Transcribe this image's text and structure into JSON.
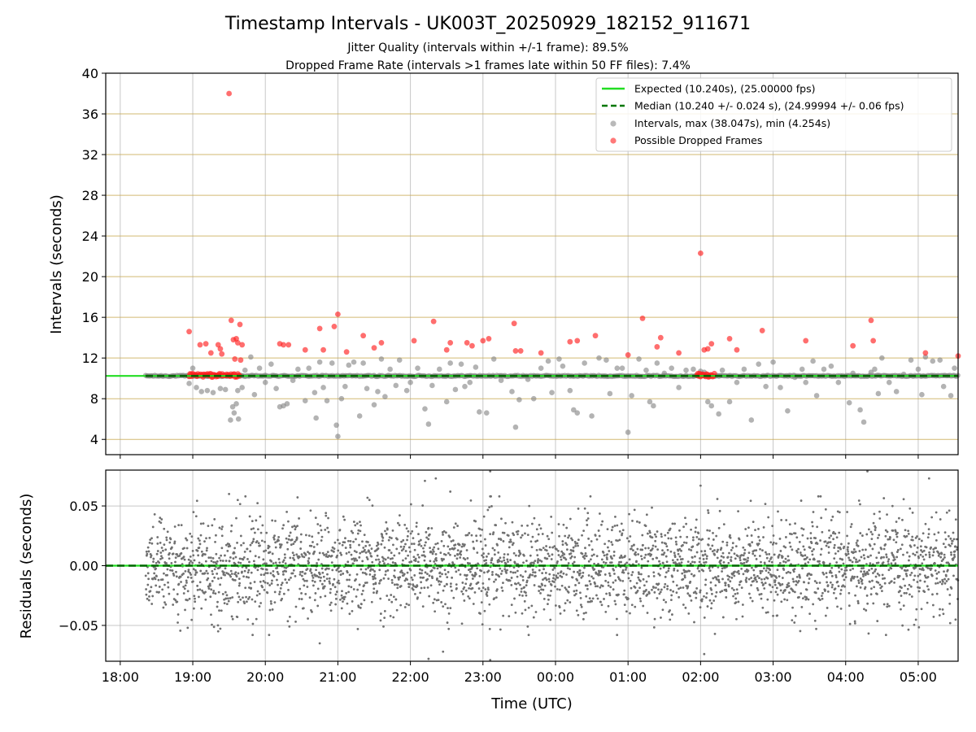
{
  "chart_data": [
    {
      "type": "scatter",
      "title": "Timestamp Intervals - UK003T_20250929_182152_911671",
      "subtitle_1": "Jitter Quality (intervals within +/-1 frame): 89.5%",
      "subtitle_2": "Dropped Frame Rate (intervals >1 frames late within 50 FF files): 7.4%",
      "xlabel": "",
      "ylabel": "Intervals (seconds)",
      "x_units": "hours since 18:00 UTC",
      "xlim": [
        -0.2,
        11.55
      ],
      "ylim": [
        2.5,
        40
      ],
      "yticks": [
        4,
        8,
        12,
        16,
        20,
        24,
        28,
        32,
        36,
        40
      ],
      "ytick_labels": [
        "4",
        "8",
        "12",
        "16",
        "20",
        "24",
        "28",
        "32",
        "36",
        "40"
      ],
      "grid": "horizontal, gold",
      "legend_position": "top-right",
      "legend": [
        {
          "label": "Expected (10.240s), (25.00000 fps)",
          "kind": "line",
          "color": "#22dd22"
        },
        {
          "label": "Median (10.240 +/- 0.024 s), (24.99994 +/- 0.06 fps)",
          "kind": "dashed",
          "color": "#007700"
        },
        {
          "label": "Intervals, max (38.047s), min (4.254s)",
          "kind": "dot",
          "color": "#808080"
        },
        {
          "label": "Possible Dropped Frames",
          "kind": "dot",
          "color": "#ff2020"
        }
      ],
      "series": [
        {
          "name": "Expected",
          "type": "line",
          "y": 10.24,
          "x_range": [
            -0.2,
            11.55
          ],
          "color": "#22dd22"
        },
        {
          "name": "Median",
          "type": "dashed",
          "y": 10.24,
          "x_range": [
            0.35,
            11.55
          ],
          "color": "#006600"
        },
        {
          "name": "Intervals",
          "color": "#808080",
          "baseline": {
            "y": 10.24,
            "x_range": [
              0.35,
              11.55
            ]
          },
          "points": [
            [
              0.95,
              9.5
            ],
            [
              1.0,
              11.0
            ],
            [
              1.05,
              9.1
            ],
            [
              1.12,
              8.7
            ],
            [
              1.2,
              8.8
            ],
            [
              1.28,
              8.6
            ],
            [
              1.38,
              9.0
            ],
            [
              1.45,
              8.9
            ],
            [
              1.52,
              5.9
            ],
            [
              1.57,
              6.6
            ],
            [
              1.6,
              7.5
            ],
            [
              1.63,
              6.0
            ],
            [
              1.55,
              7.2
            ],
            [
              1.62,
              8.8
            ],
            [
              1.68,
              9.1
            ],
            [
              1.72,
              10.8
            ],
            [
              1.8,
              12.1
            ],
            [
              1.85,
              8.4
            ],
            [
              1.92,
              11.0
            ],
            [
              2.0,
              9.6
            ],
            [
              2.08,
              11.4
            ],
            [
              2.15,
              9.0
            ],
            [
              2.2,
              7.2
            ],
            [
              2.25,
              7.3
            ],
            [
              2.3,
              7.5
            ],
            [
              2.38,
              9.8
            ],
            [
              2.45,
              10.9
            ],
            [
              2.55,
              7.8
            ],
            [
              2.6,
              11.0
            ],
            [
              2.68,
              8.6
            ],
            [
              2.75,
              11.6
            ],
            [
              2.8,
              9.1
            ],
            [
              2.7,
              6.1
            ],
            [
              2.85,
              7.8
            ],
            [
              2.92,
              11.5
            ],
            [
              2.98,
              5.4
            ],
            [
              3.0,
              4.3
            ],
            [
              3.05,
              8.0
            ],
            [
              3.1,
              9.2
            ],
            [
              3.15,
              11.3
            ],
            [
              3.22,
              11.6
            ],
            [
              3.3,
              6.3
            ],
            [
              3.35,
              11.5
            ],
            [
              3.4,
              9.0
            ],
            [
              3.5,
              7.4
            ],
            [
              3.55,
              8.7
            ],
            [
              3.6,
              11.9
            ],
            [
              3.65,
              8.2
            ],
            [
              3.72,
              10.9
            ],
            [
              3.8,
              9.3
            ],
            [
              3.85,
              11.8
            ],
            [
              3.95,
              8.8
            ],
            [
              4.0,
              9.6
            ],
            [
              4.1,
              11.0
            ],
            [
              4.2,
              7.0
            ],
            [
              4.25,
              5.5
            ],
            [
              4.3,
              9.3
            ],
            [
              4.4,
              10.9
            ],
            [
              4.5,
              7.7
            ],
            [
              4.55,
              11.5
            ],
            [
              4.62,
              8.9
            ],
            [
              4.7,
              11.4
            ],
            [
              4.75,
              9.2
            ],
            [
              4.82,
              9.6
            ],
            [
              4.9,
              11.1
            ],
            [
              4.95,
              6.7
            ],
            [
              5.05,
              6.6
            ],
            [
              5.15,
              11.9
            ],
            [
              5.25,
              9.8
            ],
            [
              5.4,
              8.7
            ],
            [
              5.45,
              5.2
            ],
            [
              5.5,
              7.9
            ],
            [
              5.62,
              9.9
            ],
            [
              5.7,
              8.0
            ],
            [
              5.8,
              11.0
            ],
            [
              5.9,
              11.7
            ],
            [
              5.95,
              8.6
            ],
            [
              6.05,
              11.9
            ],
            [
              6.1,
              11.2
            ],
            [
              6.2,
              8.8
            ],
            [
              6.25,
              6.9
            ],
            [
              6.3,
              6.6
            ],
            [
              6.4,
              11.5
            ],
            [
              6.5,
              6.3
            ],
            [
              6.6,
              12.0
            ],
            [
              6.7,
              11.8
            ],
            [
              6.75,
              8.5
            ],
            [
              6.85,
              11.0
            ],
            [
              6.92,
              11.0
            ],
            [
              7.05,
              8.3
            ],
            [
              7.15,
              11.9
            ],
            [
              7.0,
              4.7
            ],
            [
              7.25,
              10.8
            ],
            [
              7.3,
              7.7
            ],
            [
              7.35,
              7.3
            ],
            [
              7.4,
              11.5
            ],
            [
              7.5,
              10.5
            ],
            [
              7.6,
              11.0
            ],
            [
              7.7,
              9.1
            ],
            [
              7.8,
              10.8
            ],
            [
              7.9,
              10.9
            ],
            [
              8.0,
              10.7
            ],
            [
              8.05,
              10.6
            ],
            [
              8.1,
              7.7
            ],
            [
              8.15,
              7.3
            ],
            [
              8.25,
              6.5
            ],
            [
              8.3,
              10.8
            ],
            [
              8.4,
              7.7
            ],
            [
              8.5,
              9.6
            ],
            [
              8.6,
              10.9
            ],
            [
              8.7,
              5.9
            ],
            [
              8.8,
              11.4
            ],
            [
              8.9,
              9.2
            ],
            [
              9.0,
              11.6
            ],
            [
              9.1,
              9.1
            ],
            [
              9.2,
              6.8
            ],
            [
              9.3,
              10.1
            ],
            [
              9.4,
              10.9
            ],
            [
              9.45,
              9.6
            ],
            [
              9.55,
              11.7
            ],
            [
              9.6,
              8.3
            ],
            [
              9.7,
              10.9
            ],
            [
              9.8,
              11.2
            ],
            [
              9.9,
              9.6
            ],
            [
              10.05,
              7.6
            ],
            [
              10.1,
              10.5
            ],
            [
              10.2,
              6.9
            ],
            [
              10.25,
              5.7
            ],
            [
              10.35,
              10.6
            ],
            [
              10.4,
              10.9
            ],
            [
              10.45,
              8.5
            ],
            [
              10.5,
              12.0
            ],
            [
              10.6,
              9.6
            ],
            [
              10.7,
              8.7
            ],
            [
              10.8,
              10.4
            ],
            [
              10.9,
              11.8
            ],
            [
              11.0,
              10.9
            ],
            [
              11.05,
              8.4
            ],
            [
              11.1,
              12.1
            ],
            [
              11.2,
              11.7
            ],
            [
              11.3,
              11.8
            ],
            [
              11.35,
              9.2
            ],
            [
              11.45,
              8.3
            ],
            [
              11.5,
              11.0
            ]
          ]
        },
        {
          "name": "Possible Dropped Frames",
          "color": "#ff2020",
          "cluster_x_ranges": [
            [
              0.95,
              1.65
            ],
            [
              7.95,
              8.2
            ]
          ],
          "cluster_y": 10.3,
          "points": [
            [
              0.95,
              14.6
            ],
            [
              1.1,
              13.3
            ],
            [
              1.18,
              13.4
            ],
            [
              1.25,
              12.5
            ],
            [
              1.35,
              13.3
            ],
            [
              1.38,
              12.9
            ],
            [
              1.4,
              12.4
            ],
            [
              1.5,
              38.0
            ],
            [
              1.53,
              15.7
            ],
            [
              1.56,
              13.8
            ],
            [
              1.58,
              11.9
            ],
            [
              1.6,
              13.9
            ],
            [
              1.62,
              13.5
            ],
            [
              1.65,
              15.3
            ],
            [
              1.68,
              13.3
            ],
            [
              1.66,
              11.8
            ],
            [
              2.2,
              13.4
            ],
            [
              2.25,
              13.3
            ],
            [
              2.32,
              13.3
            ],
            [
              2.55,
              12.8
            ],
            [
              2.75,
              14.9
            ],
            [
              2.8,
              12.8
            ],
            [
              2.95,
              15.1
            ],
            [
              3.0,
              16.3
            ],
            [
              3.12,
              12.6
            ],
            [
              3.35,
              14.2
            ],
            [
              3.5,
              13.0
            ],
            [
              3.6,
              13.5
            ],
            [
              4.05,
              13.7
            ],
            [
              4.32,
              15.6
            ],
            [
              4.5,
              12.8
            ],
            [
              4.55,
              13.5
            ],
            [
              4.78,
              13.5
            ],
            [
              4.85,
              13.2
            ],
            [
              5.0,
              13.7
            ],
            [
              5.08,
              13.9
            ],
            [
              5.43,
              15.4
            ],
            [
              5.45,
              12.7
            ],
            [
              5.52,
              12.7
            ],
            [
              5.8,
              12.5
            ],
            [
              6.2,
              13.6
            ],
            [
              6.3,
              13.7
            ],
            [
              6.55,
              14.2
            ],
            [
              7.0,
              12.3
            ],
            [
              7.2,
              15.9
            ],
            [
              7.4,
              13.1
            ],
            [
              7.45,
              14.0
            ],
            [
              7.7,
              12.5
            ],
            [
              8.0,
              22.3
            ],
            [
              8.05,
              12.8
            ],
            [
              8.1,
              12.9
            ],
            [
              8.15,
              13.4
            ],
            [
              8.4,
              13.9
            ],
            [
              8.5,
              12.8
            ],
            [
              8.85,
              14.7
            ],
            [
              9.45,
              13.7
            ],
            [
              10.1,
              13.2
            ],
            [
              10.35,
              15.7
            ],
            [
              10.38,
              13.7
            ],
            [
              11.1,
              12.5
            ],
            [
              11.55,
              12.2
            ]
          ]
        }
      ]
    },
    {
      "type": "scatter",
      "title": "",
      "xlabel": "Time (UTC)",
      "ylabel": "Residuals (seconds)",
      "xlim": [
        -0.2,
        11.55
      ],
      "ylim": [
        -0.08,
        0.08
      ],
      "yticks": [
        -0.05,
        0.0,
        0.05
      ],
      "ytick_labels": [
        "−0.05",
        "0.00",
        "0.05"
      ],
      "xticks": [
        0,
        1,
        2,
        3,
        4,
        5,
        6,
        7,
        8,
        9,
        10,
        11
      ],
      "xtick_labels": [
        "18:00",
        "19:00",
        "20:00",
        "21:00",
        "22:00",
        "23:00",
        "00:00",
        "01:00",
        "02:00",
        "03:00",
        "04:00",
        "05:00"
      ],
      "grid": "both, gray",
      "series": [
        {
          "name": "Expected",
          "type": "line",
          "y": 0.0,
          "color": "#22dd22"
        },
        {
          "name": "Median",
          "type": "dashed",
          "y": 0.0,
          "color": "#006600"
        },
        {
          "name": "Residuals",
          "color": "#707070",
          "x_range": [
            0.35,
            11.55
          ],
          "count": 3200,
          "spread_sd": 0.02,
          "outliers": [
            [
              1.5,
              0.06
            ],
            [
              1.62,
              0.055
            ],
            [
              4.2,
              0.071
            ],
            [
              4.35,
              0.073
            ],
            [
              4.55,
              0.062
            ],
            [
              5.1,
              0.079
            ],
            [
              8.0,
              0.067
            ],
            [
              10.3,
              0.079
            ],
            [
              11.15,
              0.073
            ],
            [
              4.25,
              -0.078
            ],
            [
              4.45,
              -0.072
            ],
            [
              5.1,
              -0.079
            ],
            [
              8.05,
              -0.074
            ],
            [
              2.75,
              -0.065
            ],
            [
              1.35,
              -0.055
            ]
          ]
        }
      ]
    }
  ]
}
